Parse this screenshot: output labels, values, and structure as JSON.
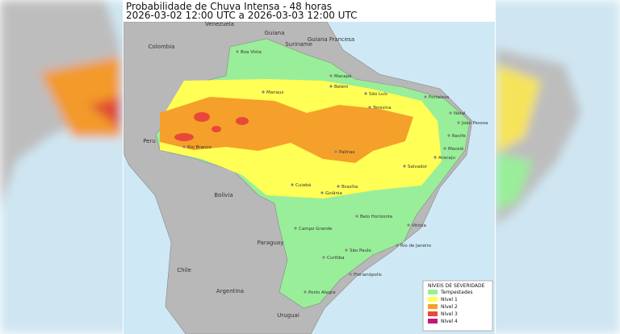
{
  "header": {
    "title": "Probabilidade de Chuva Intensa - 48 horas",
    "period": "2026-03-02 12:00 UTC a 2026-03-03 12:00 UTC"
  },
  "countries": [
    "Venezuela",
    "Colombia",
    "Guiana",
    "Suriname",
    "Guiana Francesa",
    "Peru",
    "Bolivia",
    "Paraguay",
    "Chile",
    "Argentina",
    "Uruguai"
  ],
  "cities": [
    "Boa Vista",
    "Macapá",
    "Belém",
    "Manaus",
    "São Luís",
    "Fortaleza",
    "Teresina",
    "Natal",
    "João Pessoa",
    "Recife",
    "Rio Branco",
    "Palmas",
    "Maceió",
    "Aracaju",
    "Salvador",
    "Cuiabá",
    "Brasília",
    "Goiânia",
    "Belo Horizonte",
    "Vitória",
    "Campo Grande",
    "Rio de Janeiro",
    "São Paulo",
    "Curitiba",
    "Florianópolis",
    "Porto Alegre"
  ],
  "legend": {
    "title": "NÍVEIS DE SEVERIDADE",
    "entries": [
      {
        "label": "Tempestades",
        "color": "#99ee99"
      },
      {
        "label": "Nível 1",
        "color": "#ffff55"
      },
      {
        "label": "Nível 2",
        "color": "#f5a02a"
      },
      {
        "label": "Nível 3",
        "color": "#e8483a"
      },
      {
        "label": "Nível 4",
        "color": "#c4177c"
      }
    ]
  }
}
